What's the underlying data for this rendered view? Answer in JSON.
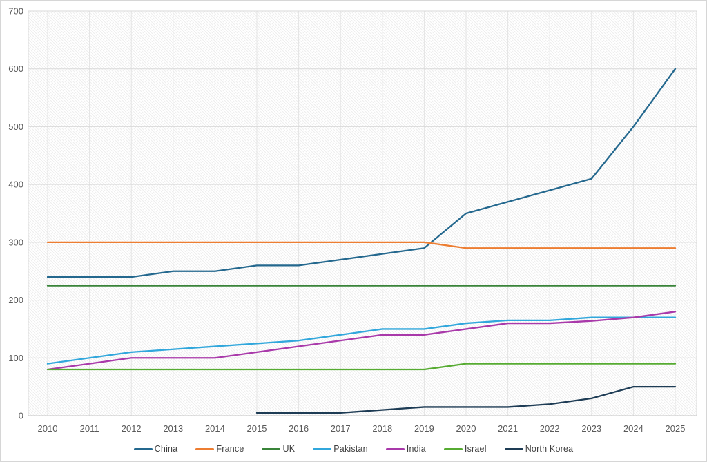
{
  "chart_data": {
    "type": "line",
    "title": "",
    "xlabel": "",
    "ylabel": "",
    "x": [
      2010,
      2011,
      2012,
      2013,
      2014,
      2015,
      2016,
      2017,
      2018,
      2019,
      2020,
      2021,
      2022,
      2023,
      2024,
      2025
    ],
    "ylim": [
      0,
      700
    ],
    "yticks": [
      0,
      100,
      200,
      300,
      400,
      500,
      600,
      700
    ],
    "grid": true,
    "plot_background": "light-diagonal-hatch",
    "legend_position": "bottom",
    "series": [
      {
        "name": "China",
        "color": "#24688e",
        "values": [
          240,
          240,
          240,
          250,
          250,
          260,
          260,
          270,
          280,
          290,
          350,
          370,
          390,
          410,
          500,
          600
        ]
      },
      {
        "name": "France",
        "color": "#ed7d31",
        "values": [
          300,
          300,
          300,
          300,
          300,
          300,
          300,
          300,
          300,
          300,
          290,
          290,
          290,
          290,
          290,
          290
        ]
      },
      {
        "name": "UK",
        "color": "#398439",
        "values": [
          225,
          225,
          225,
          225,
          225,
          225,
          225,
          225,
          225,
          225,
          225,
          225,
          225,
          225,
          225,
          225
        ]
      },
      {
        "name": "Pakistan",
        "color": "#31a7dc",
        "values": [
          90,
          100,
          110,
          115,
          120,
          125,
          130,
          140,
          150,
          150,
          160,
          165,
          165,
          170,
          170,
          170
        ]
      },
      {
        "name": "India",
        "color": "#a939aa",
        "values": [
          80,
          90,
          100,
          100,
          100,
          110,
          120,
          130,
          140,
          140,
          150,
          160,
          160,
          164,
          170,
          180
        ]
      },
      {
        "name": "Israel",
        "color": "#56ab31",
        "values": [
          80,
          80,
          80,
          80,
          80,
          80,
          80,
          80,
          80,
          80,
          90,
          90,
          90,
          90,
          90,
          90
        ]
      },
      {
        "name": "North Korea",
        "color": "#1e3c55",
        "values": [
          null,
          null,
          null,
          null,
          null,
          5,
          5,
          5,
          10,
          15,
          15,
          15,
          20,
          30,
          50,
          50
        ]
      }
    ]
  },
  "style": {
    "grid_color_h": "#d9d9d9",
    "grid_color_v": "#e4e4e4",
    "axis_line_color": "#c2c2c2",
    "hatch_color": "#ededed",
    "plot_border_color": "#d9d9d9",
    "tick_label_color": "#595959",
    "legend_text_color": "#404040"
  }
}
